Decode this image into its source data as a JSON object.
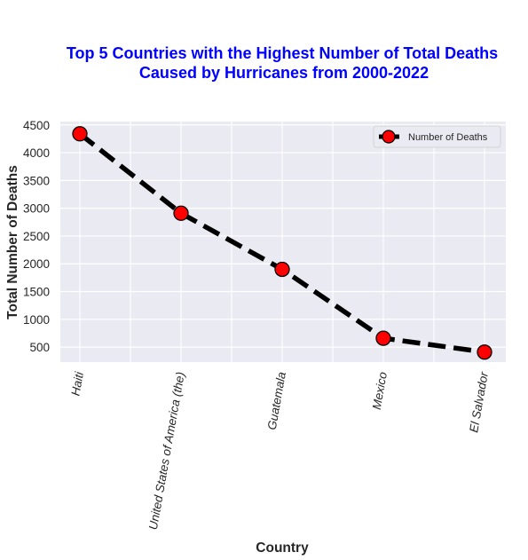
{
  "chart_data": {
    "type": "line",
    "title": [
      "Top 5 Countries with the Highest Number of Total Deaths",
      "Caused by Hurricanes from 2000-2022"
    ],
    "xlabel": "Country",
    "ylabel": "Total Number of Deaths",
    "categories": [
      "Haiti",
      "United States of America (the)",
      "Guatemala",
      "Mexico",
      "El Salvador"
    ],
    "series": [
      {
        "name": "Number of Deaths",
        "values": [
          4340,
          2910,
          1900,
          660,
          410
        ]
      }
    ],
    "yticks": [
      500,
      1000,
      1500,
      2000,
      2500,
      3000,
      3500,
      4000,
      4500
    ],
    "ylim": [
      230,
      4560
    ],
    "grid": true,
    "legend_position": "upper right",
    "colors": {
      "line": "#000000",
      "marker": "#ff0000",
      "title": "#0000ff",
      "plot_bg": "#eaeaf2",
      "grid": "#ffffff"
    }
  }
}
